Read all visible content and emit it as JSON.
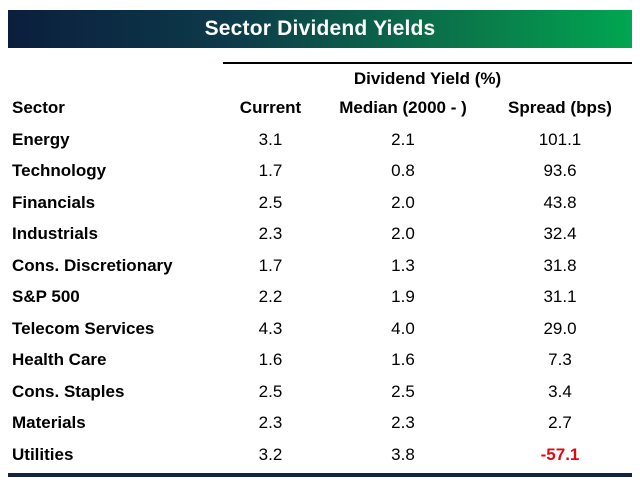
{
  "title": "Sector Dividend Yields",
  "colors": {
    "banner_gradient_start": "#0b1e3d",
    "banner_gradient_end": "#00a651",
    "title_text": "#ffffff",
    "body_text": "#000000",
    "negative_value": "#e30613",
    "bottom_rule": "#15233f"
  },
  "chart_data": {
    "type": "table",
    "title": "Sector Dividend Yields",
    "group_header": "Dividend Yield (%)",
    "columns": [
      "Sector",
      "Current",
      "Median (2000 - )",
      "Spread (bps)"
    ],
    "rows": [
      {
        "sector": "Energy",
        "current": "3.1",
        "median": "2.1",
        "spread": "101.1"
      },
      {
        "sector": "Technology",
        "current": "1.7",
        "median": "0.8",
        "spread": "93.6"
      },
      {
        "sector": "Financials",
        "current": "2.5",
        "median": "2.0",
        "spread": "43.8"
      },
      {
        "sector": "Industrials",
        "current": "2.3",
        "median": "2.0",
        "spread": "32.4"
      },
      {
        "sector": "Cons. Discretionary",
        "current": "1.7",
        "median": "1.3",
        "spread": "31.8"
      },
      {
        "sector": "S&P 500",
        "current": "2.2",
        "median": "1.9",
        "spread": "31.1"
      },
      {
        "sector": "Telecom Services",
        "current": "4.3",
        "median": "4.0",
        "spread": "29.0"
      },
      {
        "sector": "Health Care",
        "current": "1.6",
        "median": "1.6",
        "spread": "7.3"
      },
      {
        "sector": "Cons. Staples",
        "current": "2.5",
        "median": "2.5",
        "spread": "3.4"
      },
      {
        "sector": "Materials",
        "current": "2.3",
        "median": "2.3",
        "spread": "2.7"
      },
      {
        "sector": "Utilities",
        "current": "3.2",
        "median": "3.8",
        "spread": "-57.1"
      }
    ]
  }
}
